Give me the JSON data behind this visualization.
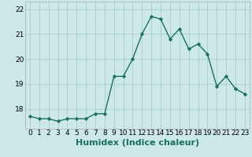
{
  "x": [
    0,
    1,
    2,
    3,
    4,
    5,
    6,
    7,
    8,
    9,
    10,
    11,
    12,
    13,
    14,
    15,
    16,
    17,
    18,
    19,
    20,
    21,
    22,
    23
  ],
  "y": [
    17.7,
    17.6,
    17.6,
    17.5,
    17.6,
    17.6,
    17.6,
    17.8,
    17.8,
    19.3,
    19.3,
    20.0,
    21.0,
    21.7,
    21.6,
    20.8,
    21.2,
    20.4,
    20.6,
    20.2,
    18.9,
    19.3,
    18.8,
    18.6
  ],
  "line_color": "#1a7060",
  "marker": "D",
  "marker_size": 2.2,
  "bg_color": "#cce8e8",
  "grid_color": "#aacccc",
  "xlabel": "Humidex (Indice chaleur)",
  "xlabel_fontsize": 8,
  "tick_fontsize": 6.5,
  "ylim": [
    17.2,
    22.3
  ],
  "yticks": [
    18,
    19,
    20,
    21,
    22
  ],
  "xticks": [
    0,
    1,
    2,
    3,
    4,
    5,
    6,
    7,
    8,
    9,
    10,
    11,
    12,
    13,
    14,
    15,
    16,
    17,
    18,
    19,
    20,
    21,
    22,
    23
  ]
}
